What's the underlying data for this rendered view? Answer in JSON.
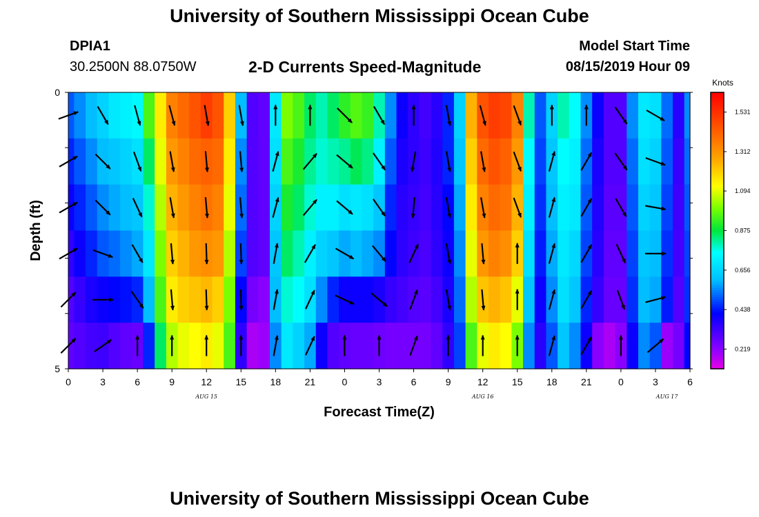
{
  "header": {
    "title": "University of Southern Mississippi Ocean Cube",
    "station_id": "DPIA1",
    "station_coords": "30.2500N 88.0750W",
    "chart_title": "2-D Currents Speed-Magnitude",
    "model_label": "Model Start Time",
    "model_time": "08/15/2019 Hour 09"
  },
  "footer": {
    "title": "University of Southern Mississippi Ocean Cube"
  },
  "chart_data": {
    "type": "heatmap",
    "title": "2-D Currents Speed-Magnitude",
    "xlabel": "Forecast Time(Z)",
    "ylabel": "Depth (ft)",
    "x_start": "2019-08-15 00Z",
    "x_step_hours": 1,
    "x_hours": [
      0,
      1,
      2,
      3,
      4,
      5,
      6,
      7,
      8,
      9,
      10,
      11,
      12,
      13,
      14,
      15,
      16,
      17,
      18,
      19,
      20,
      21,
      22,
      23,
      24,
      25,
      26,
      27,
      28,
      29,
      30,
      31,
      32,
      33,
      34,
      35,
      36,
      37,
      38,
      39,
      40,
      41,
      42,
      43,
      44,
      45,
      46,
      47,
      48,
      49,
      50,
      51,
      52,
      53,
      54
    ],
    "x_tick_labels": [
      "0",
      "3",
      "6",
      "9",
      "12",
      "15",
      "18",
      "21",
      "0",
      "3",
      "6",
      "9",
      "12",
      "15",
      "18",
      "21",
      "0",
      "3",
      "6"
    ],
    "day_labels": [
      "AUG 15",
      "AUG 16",
      "AUG 17"
    ],
    "day_label_hours": [
      12,
      36,
      52
    ],
    "y_tick_labels": [
      "0",
      "5"
    ],
    "ylim": [
      0,
      5
    ],
    "depth_levels_ft": [
      0,
      1,
      2,
      3,
      4,
      5
    ],
    "colorbar": {
      "unit": "Knots",
      "min": 0.11,
      "max": 1.64,
      "tick_values": [
        0.219,
        0.438,
        0.656,
        0.875,
        1.094,
        1.312,
        1.531
      ],
      "tick_labels": [
        "0.219",
        "0.438",
        "0.656",
        "0.875",
        "1.094",
        "1.312",
        "1.531"
      ]
    },
    "speed_knots": [
      [
        0.5,
        0.55,
        0.6,
        0.65,
        0.7,
        0.72,
        0.74,
        0.95,
        1.15,
        1.35,
        1.4,
        1.45,
        1.5,
        1.45,
        1.2,
        0.6,
        0.3,
        0.28,
        0.7,
        1.0,
        0.95,
        0.85,
        0.8,
        0.85,
        0.92,
        0.96,
        0.93,
        0.8,
        0.55,
        0.4,
        0.35,
        0.32,
        0.36,
        0.45,
        0.65,
        1.25,
        1.45,
        1.5,
        1.48,
        1.35,
        0.8,
        0.5,
        0.65,
        0.8,
        0.75,
        0.55,
        0.4,
        0.3,
        0.3,
        0.55,
        0.7,
        0.68,
        0.52,
        0.36,
        0.55
      ],
      [
        0.45,
        0.5,
        0.55,
        0.6,
        0.62,
        0.65,
        0.68,
        0.85,
        1.1,
        1.3,
        1.35,
        1.4,
        1.42,
        1.4,
        1.15,
        0.55,
        0.3,
        0.28,
        0.68,
        0.95,
        0.9,
        0.82,
        0.78,
        0.8,
        0.82,
        0.86,
        0.83,
        0.72,
        0.5,
        0.38,
        0.35,
        0.33,
        0.37,
        0.45,
        0.62,
        1.2,
        1.4,
        1.45,
        1.42,
        1.3,
        0.75,
        0.48,
        0.62,
        0.75,
        0.72,
        0.52,
        0.38,
        0.3,
        0.3,
        0.52,
        0.68,
        0.65,
        0.5,
        0.34,
        0.52
      ],
      [
        0.4,
        0.45,
        0.5,
        0.55,
        0.58,
        0.6,
        0.62,
        0.78,
        1.05,
        1.25,
        1.3,
        1.35,
        1.38,
        1.35,
        1.1,
        0.52,
        0.3,
        0.28,
        0.65,
        0.9,
        0.85,
        0.78,
        0.72,
        0.72,
        0.68,
        0.7,
        0.68,
        0.62,
        0.45,
        0.36,
        0.34,
        0.32,
        0.36,
        0.42,
        0.58,
        1.15,
        1.35,
        1.4,
        1.38,
        1.25,
        0.72,
        0.46,
        0.6,
        0.72,
        0.7,
        0.5,
        0.37,
        0.29,
        0.29,
        0.5,
        0.65,
        0.62,
        0.48,
        0.33,
        0.5
      ],
      [
        0.35,
        0.4,
        0.45,
        0.5,
        0.52,
        0.55,
        0.58,
        0.7,
        1.0,
        1.2,
        1.25,
        1.3,
        1.32,
        1.3,
        1.05,
        0.48,
        0.3,
        0.28,
        0.62,
        0.85,
        0.8,
        0.72,
        0.65,
        0.62,
        0.58,
        0.6,
        0.58,
        0.55,
        0.42,
        0.35,
        0.33,
        0.31,
        0.35,
        0.4,
        0.55,
        1.1,
        1.3,
        1.35,
        1.32,
        1.2,
        0.68,
        0.44,
        0.58,
        0.7,
        0.66,
        0.48,
        0.36,
        0.28,
        0.28,
        0.48,
        0.62,
        0.6,
        0.46,
        0.32,
        0.48
      ],
      [
        0.3,
        0.34,
        0.38,
        0.4,
        0.42,
        0.43,
        0.45,
        0.6,
        0.95,
        1.15,
        1.2,
        1.22,
        1.24,
        1.2,
        1.0,
        0.42,
        0.25,
        0.22,
        0.6,
        0.78,
        0.75,
        0.68,
        0.55,
        0.45,
        0.4,
        0.4,
        0.4,
        0.38,
        0.34,
        0.32,
        0.3,
        0.29,
        0.32,
        0.38,
        0.52,
        1.05,
        1.22,
        1.25,
        1.22,
        1.1,
        0.62,
        0.4,
        0.55,
        0.68,
        0.62,
        0.45,
        0.34,
        0.27,
        0.27,
        0.46,
        0.6,
        0.58,
        0.44,
        0.3,
        0.46
      ],
      [
        0.28,
        0.3,
        0.32,
        0.33,
        0.3,
        0.28,
        0.27,
        0.45,
        0.85,
        1.05,
        1.1,
        1.12,
        1.15,
        1.1,
        0.95,
        0.35,
        0.18,
        0.2,
        0.55,
        0.7,
        0.65,
        0.58,
        0.4,
        0.3,
        0.28,
        0.27,
        0.27,
        0.26,
        0.25,
        0.25,
        0.25,
        0.25,
        0.28,
        0.35,
        0.48,
        0.95,
        1.1,
        1.15,
        1.12,
        1.0,
        0.55,
        0.36,
        0.5,
        0.62,
        0.55,
        0.4,
        0.22,
        0.18,
        0.22,
        0.4,
        0.55,
        0.5,
        0.2,
        0.25,
        0.42
      ]
    ],
    "vectors": [
      {
        "hour": 0,
        "dir_deg": [
          70,
          60,
          60,
          60,
          45,
          45
        ]
      },
      {
        "hour": 3,
        "dir_deg": [
          150,
          135,
          135,
          110,
          90,
          55
        ]
      },
      {
        "hour": 6,
        "dir_deg": [
          165,
          160,
          155,
          150,
          145,
          0
        ]
      },
      {
        "hour": 9,
        "dir_deg": [
          165,
          170,
          170,
          175,
          175,
          0
        ]
      },
      {
        "hour": 12,
        "dir_deg": [
          170,
          175,
          175,
          178,
          178,
          0
        ]
      },
      {
        "hour": 15,
        "dir_deg": [
          170,
          175,
          175,
          178,
          178,
          0
        ]
      },
      {
        "hour": 18,
        "dir_deg": [
          0,
          15,
          15,
          10,
          10,
          10
        ]
      },
      {
        "hour": 21,
        "dir_deg": [
          0,
          40,
          40,
          30,
          25,
          25
        ]
      },
      {
        "hour": 24,
        "dir_deg": [
          135,
          130,
          130,
          120,
          115,
          0
        ]
      },
      {
        "hour": 27,
        "dir_deg": [
          150,
          145,
          145,
          140,
          130,
          0
        ]
      },
      {
        "hour": 30,
        "dir_deg": [
          0,
          190,
          185,
          25,
          20,
          20
        ]
      },
      {
        "hour": 33,
        "dir_deg": [
          170,
          170,
          170,
          170,
          170,
          0
        ]
      },
      {
        "hour": 36,
        "dir_deg": [
          165,
          170,
          170,
          175,
          175,
          0
        ]
      },
      {
        "hour": 39,
        "dir_deg": [
          160,
          160,
          160,
          0,
          0,
          0
        ]
      },
      {
        "hour": 42,
        "dir_deg": [
          0,
          15,
          15,
          15,
          15,
          15
        ]
      },
      {
        "hour": 45,
        "dir_deg": [
          0,
          30,
          30,
          30,
          30,
          30
        ]
      },
      {
        "hour": 48,
        "dir_deg": [
          145,
          145,
          150,
          155,
          160,
          0
        ]
      },
      {
        "hour": 51,
        "dir_deg": [
          120,
          110,
          100,
          90,
          75,
          50
        ]
      }
    ]
  }
}
